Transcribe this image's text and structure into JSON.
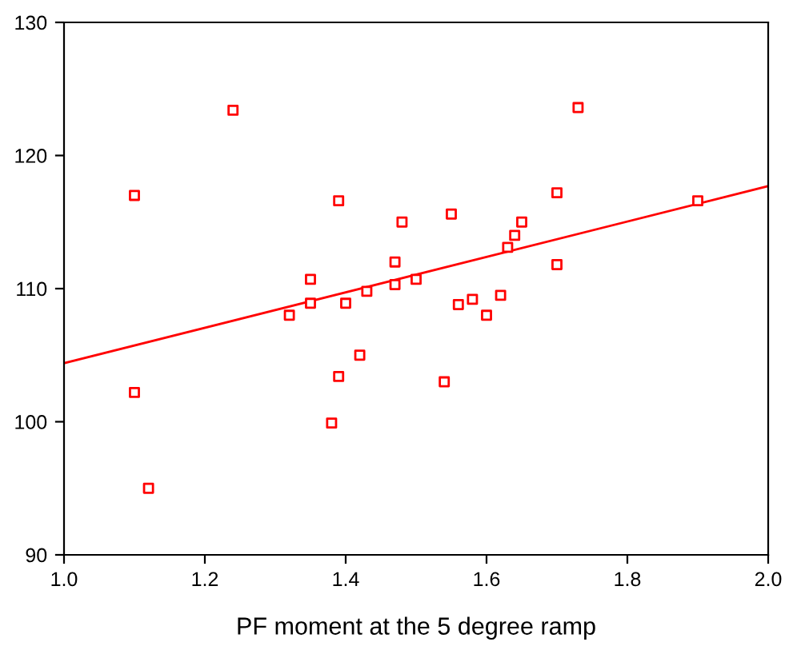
{
  "chart_data": {
    "type": "scatter",
    "xlabel": "PF moment at the 5 degree ramp",
    "xlim": [
      1.0,
      2.0
    ],
    "xticks": [
      {
        "value": 1.0,
        "label": "1.0"
      },
      {
        "value": 1.2,
        "label": "1.2"
      },
      {
        "value": 1.4,
        "label": "1.4"
      },
      {
        "value": 1.6,
        "label": "1.6"
      },
      {
        "value": 1.8,
        "label": "1.8"
      },
      {
        "value": 2.0,
        "label": "2.0"
      }
    ],
    "ylim": [
      90,
      130
    ],
    "yticks": [
      90,
      100,
      110,
      120,
      130
    ],
    "grid": false,
    "series": [
      {
        "marker": "square",
        "color": "#ff0000",
        "x": [
          1.24,
          1.1,
          1.1,
          1.12,
          1.73,
          1.9,
          1.7,
          1.7,
          1.65,
          1.64,
          1.63,
          1.62,
          1.6,
          1.58,
          1.56,
          1.55,
          1.54,
          1.5,
          1.48,
          1.47,
          1.47,
          1.43,
          1.42,
          1.4,
          1.39,
          1.39,
          1.38,
          1.35,
          1.35,
          1.32
        ],
        "values": [
          123.4,
          117.0,
          102.2,
          95.0,
          123.6,
          116.6,
          117.2,
          111.8,
          115.0,
          114.0,
          113.1,
          109.5,
          108.0,
          109.2,
          108.8,
          115.6,
          103.0,
          110.7,
          115.0,
          112.0,
          110.3,
          109.8,
          105.0,
          108.9,
          116.6,
          103.4,
          99.9,
          110.7,
          108.9,
          108.0
        ]
      },
      {
        "type": "line",
        "color": "#ff0000",
        "x": [
          1.0,
          2.0
        ],
        "values": [
          104.4,
          117.7
        ]
      }
    ]
  }
}
